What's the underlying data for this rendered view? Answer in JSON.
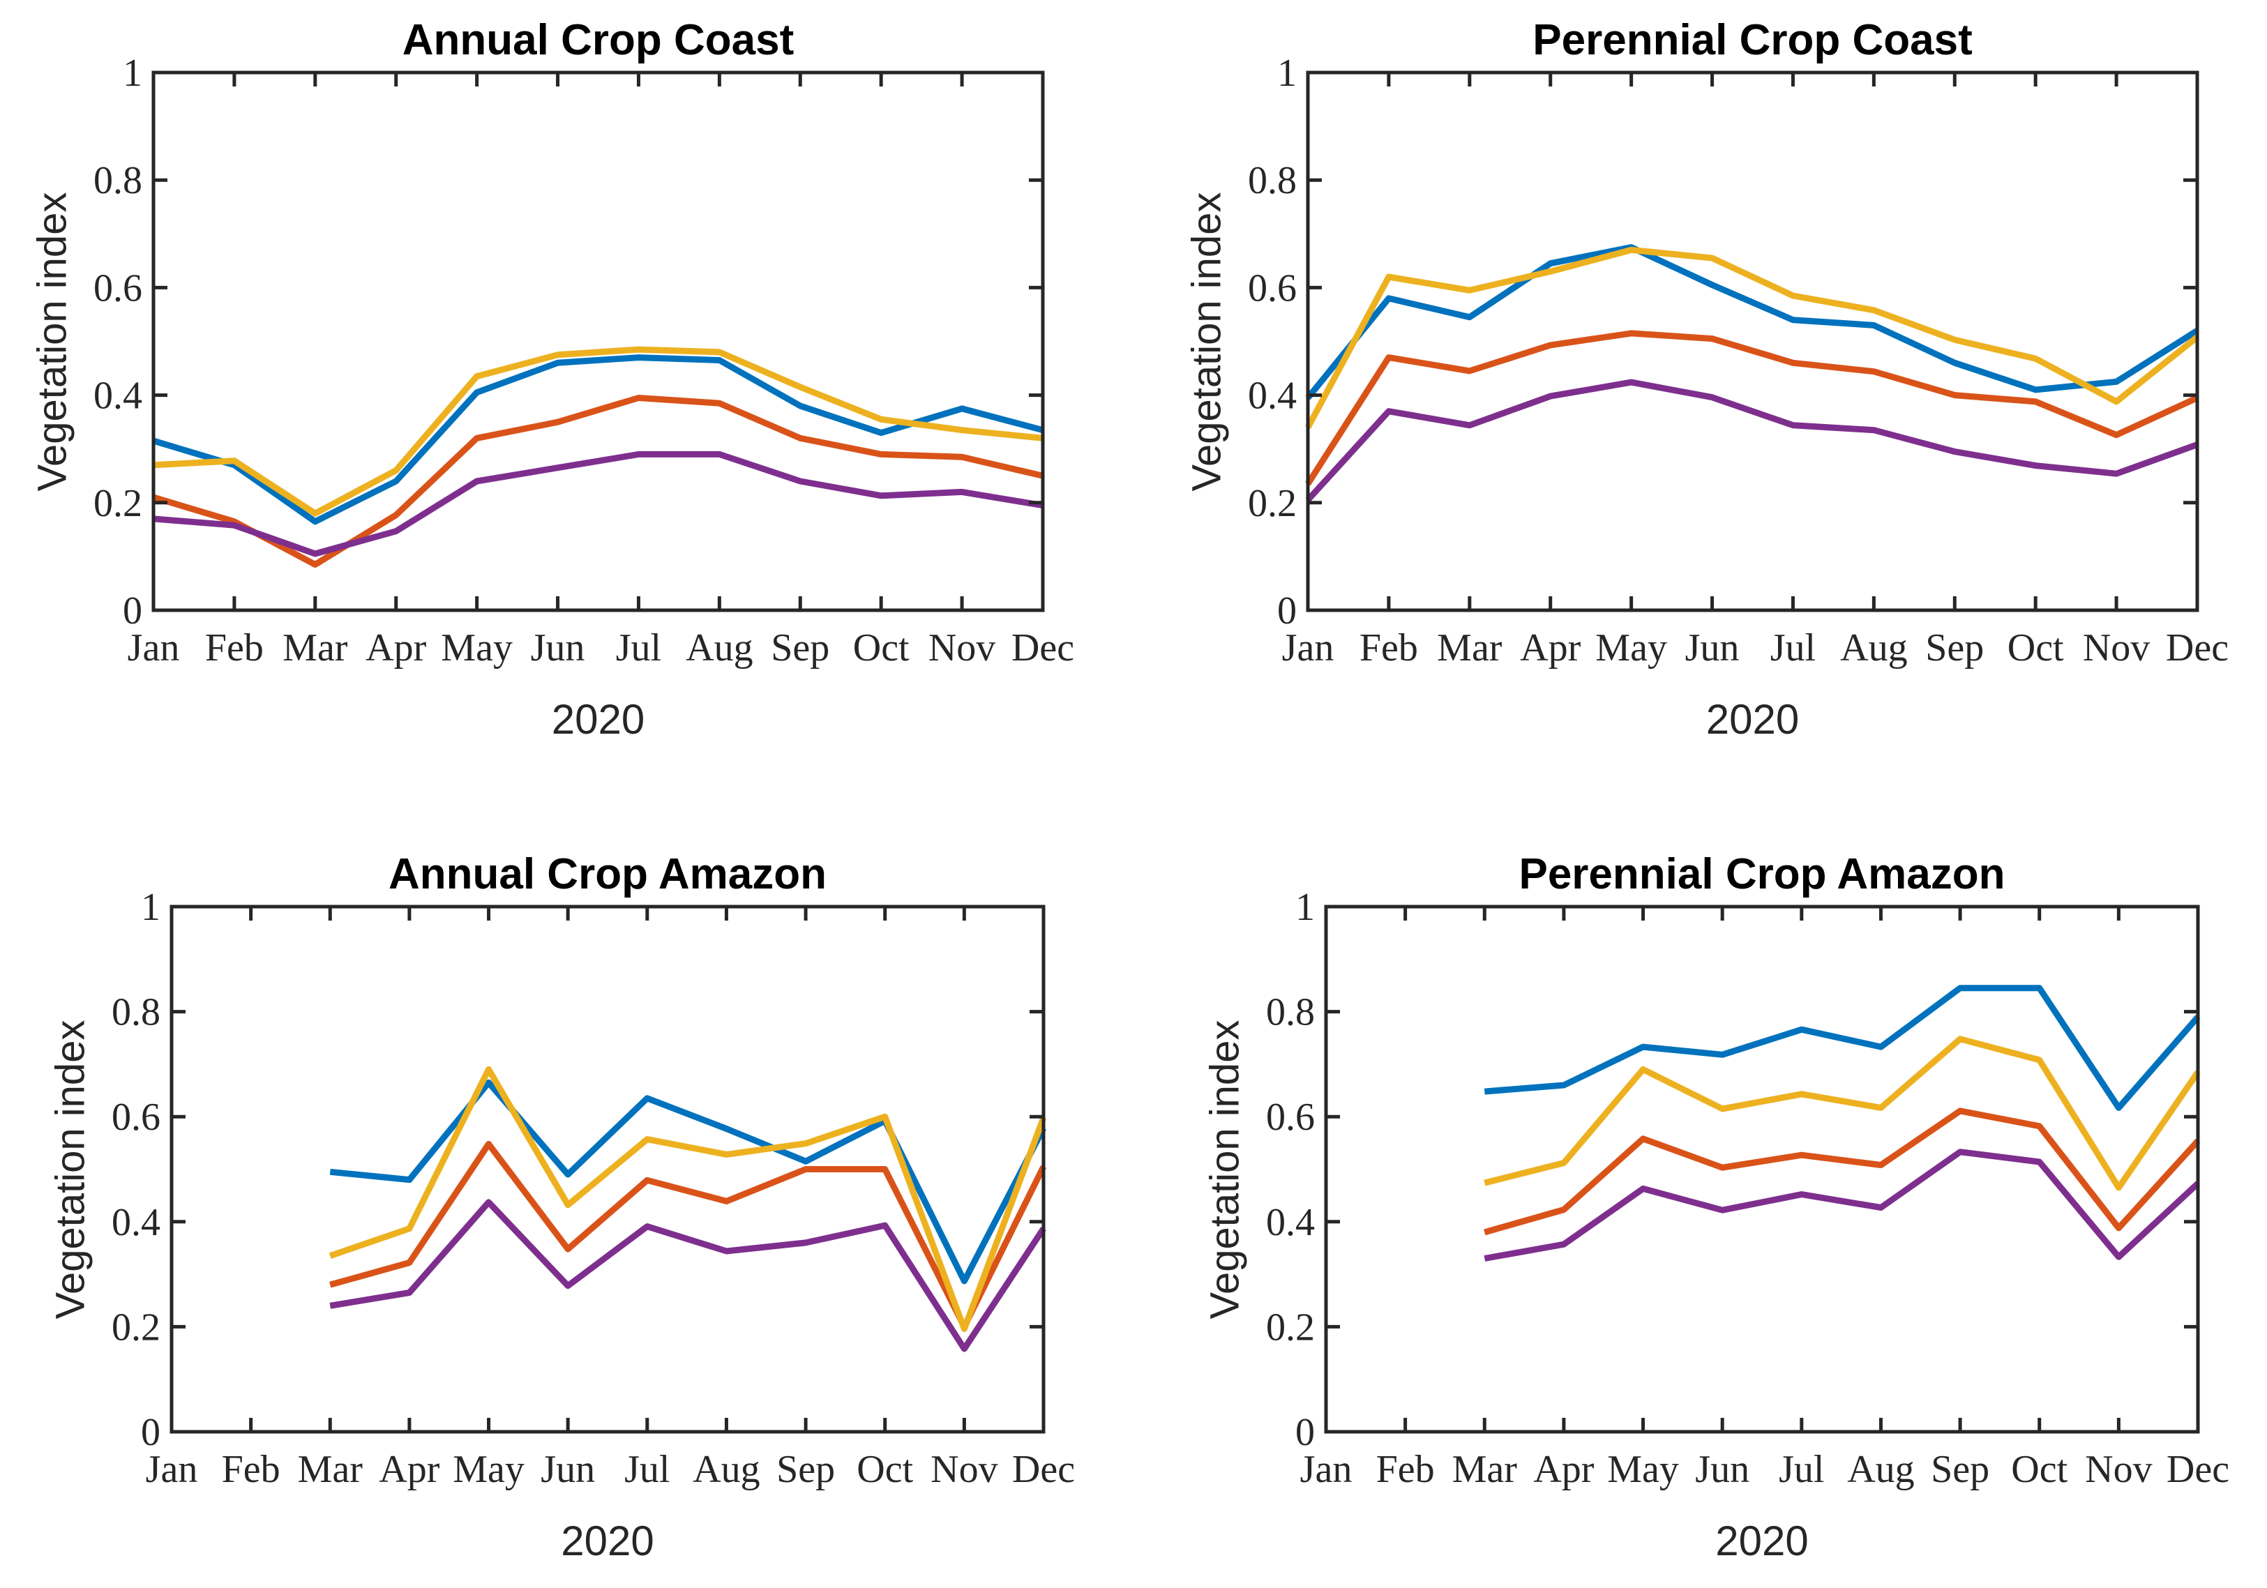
{
  "figure": {
    "background": "#ffffff",
    "axis_color": "#262626",
    "year_label": "2020",
    "y_axis_label": "Vegetation index",
    "months": [
      "Jan",
      "Feb",
      "Mar",
      "Apr",
      "May",
      "Jun",
      "Jul",
      "Aug",
      "Sep",
      "Oct",
      "Nov",
      "Dec"
    ],
    "y_ticks": [
      0,
      0.2,
      0.4,
      0.6,
      0.8,
      1
    ],
    "y_tick_labels": [
      "0",
      "0.2",
      "0.4",
      "0.6",
      "0.8",
      "1"
    ],
    "line_colors": {
      "blue": "#0072BD",
      "orange": "#D95319",
      "yellow": "#EDB120",
      "purple": "#7E2F8E"
    }
  },
  "chart_data": [
    {
      "type": "line",
      "title": "Annual Crop Coast",
      "xlabel": "2020",
      "ylabel": "Vegetation index",
      "ylim": [
        0,
        1
      ],
      "grid": false,
      "legend": "none",
      "categories": [
        "Jan",
        "Feb",
        "Mar",
        "Apr",
        "May",
        "Jun",
        "Jul",
        "Aug",
        "Sep",
        "Oct",
        "Nov",
        "Dec"
      ],
      "series": [
        {
          "name": "line-blue",
          "color": "#0072BD",
          "values": [
            0.315,
            0.27,
            0.165,
            0.24,
            0.405,
            0.46,
            0.47,
            0.465,
            0.38,
            0.33,
            0.375,
            0.335
          ]
        },
        {
          "name": "line-orange",
          "color": "#D95319",
          "values": [
            0.21,
            0.165,
            0.085,
            0.177,
            0.32,
            0.35,
            0.395,
            0.385,
            0.32,
            0.29,
            0.285,
            0.25
          ]
        },
        {
          "name": "line-yellow",
          "color": "#EDB120",
          "values": [
            0.27,
            0.278,
            0.18,
            0.26,
            0.435,
            0.475,
            0.485,
            0.48,
            0.415,
            0.355,
            0.335,
            0.32
          ]
        },
        {
          "name": "line-purple",
          "color": "#7E2F8E",
          "values": [
            0.17,
            0.158,
            0.105,
            0.147,
            0.24,
            0.265,
            0.29,
            0.29,
            0.24,
            0.213,
            0.22,
            0.195
          ]
        }
      ]
    },
    {
      "type": "line",
      "title": "Perennial Crop Coast",
      "xlabel": "2020",
      "ylabel": "Vegetation index",
      "ylim": [
        0,
        1
      ],
      "grid": false,
      "legend": "none",
      "categories": [
        "Jan",
        "Feb",
        "Mar",
        "Apr",
        "May",
        "Jun",
        "Jul",
        "Aug",
        "Sep",
        "Oct",
        "Nov",
        "Dec"
      ],
      "series": [
        {
          "name": "line-blue",
          "color": "#0072BD",
          "values": [
            0.395,
            0.58,
            0.545,
            0.645,
            0.675,
            0.605,
            0.54,
            0.53,
            0.46,
            0.41,
            0.425,
            0.52
          ]
        },
        {
          "name": "line-orange",
          "color": "#D95319",
          "values": [
            0.235,
            0.47,
            0.445,
            0.493,
            0.515,
            0.505,
            0.46,
            0.444,
            0.4,
            0.388,
            0.326,
            0.395
          ]
        },
        {
          "name": "line-yellow",
          "color": "#EDB120",
          "values": [
            0.34,
            0.62,
            0.595,
            0.63,
            0.67,
            0.655,
            0.585,
            0.558,
            0.503,
            0.468,
            0.388,
            0.508
          ]
        },
        {
          "name": "line-purple",
          "color": "#7E2F8E",
          "values": [
            0.205,
            0.37,
            0.344,
            0.398,
            0.424,
            0.396,
            0.344,
            0.335,
            0.295,
            0.269,
            0.254,
            0.308
          ]
        }
      ]
    },
    {
      "type": "line",
      "title": "Annual Crop Amazon",
      "xlabel": "2020",
      "ylabel": "Vegetation index",
      "ylim": [
        0,
        1
      ],
      "grid": false,
      "legend": "none",
      "categories": [
        "Jan",
        "Feb",
        "Mar",
        "Apr",
        "May",
        "Jun",
        "Jul",
        "Aug",
        "Sep",
        "Oct",
        "Nov",
        "Dec"
      ],
      "series": [
        {
          "name": "line-blue",
          "color": "#0072BD",
          "values": [
            null,
            null,
            0.495,
            0.48,
            0.665,
            0.49,
            0.635,
            0.577,
            0.515,
            0.592,
            0.287,
            0.578
          ]
        },
        {
          "name": "line-orange",
          "color": "#D95319",
          "values": [
            null,
            null,
            0.28,
            0.322,
            0.548,
            0.348,
            0.479,
            0.439,
            0.5,
            0.5,
            0.2,
            0.505
          ]
        },
        {
          "name": "line-yellow",
          "color": "#EDB120",
          "values": [
            null,
            null,
            0.335,
            0.387,
            0.69,
            0.432,
            0.557,
            0.528,
            0.549,
            0.6,
            0.196,
            0.598
          ]
        },
        {
          "name": "line-purple",
          "color": "#7E2F8E",
          "values": [
            null,
            null,
            0.24,
            0.265,
            0.437,
            0.278,
            0.391,
            0.344,
            0.36,
            0.393,
            0.158,
            0.387
          ]
        }
      ]
    },
    {
      "type": "line",
      "title": "Perennial Crop Amazon",
      "xlabel": "2020",
      "ylabel": "Vegetation index",
      "ylim": [
        0,
        1
      ],
      "grid": false,
      "legend": "none",
      "categories": [
        "Jan",
        "Feb",
        "Mar",
        "Apr",
        "May",
        "Jun",
        "Jul",
        "Aug",
        "Sep",
        "Oct",
        "Nov",
        "Dec"
      ],
      "series": [
        {
          "name": "line-blue",
          "color": "#0072BD",
          "values": [
            null,
            null,
            0.648,
            0.66,
            0.733,
            0.718,
            0.766,
            0.733,
            0.845,
            0.845,
            0.617,
            0.79
          ]
        },
        {
          "name": "line-orange",
          "color": "#D95319",
          "values": [
            null,
            null,
            0.38,
            0.423,
            0.558,
            0.503,
            0.527,
            0.508,
            0.611,
            0.582,
            0.388,
            0.554
          ]
        },
        {
          "name": "line-yellow",
          "color": "#EDB120",
          "values": [
            null,
            null,
            0.474,
            0.512,
            0.69,
            0.615,
            0.643,
            0.617,
            0.748,
            0.708,
            0.465,
            0.685
          ]
        },
        {
          "name": "line-purple",
          "color": "#7E2F8E",
          "values": [
            null,
            null,
            0.33,
            0.357,
            0.463,
            0.422,
            0.452,
            0.427,
            0.533,
            0.514,
            0.333,
            0.473
          ]
        }
      ]
    }
  ]
}
